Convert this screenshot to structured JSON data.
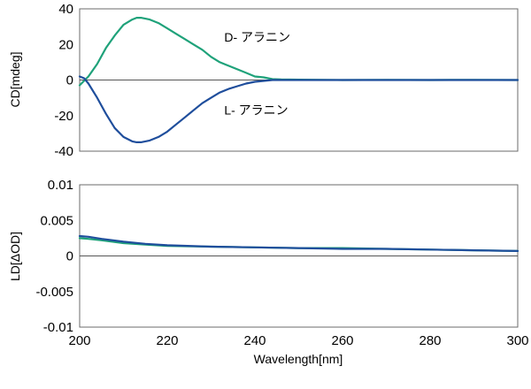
{
  "chart_data": [
    {
      "type": "line",
      "ylabel": "CD[mdeg]",
      "xlim": [
        200,
        300
      ],
      "ylim": [
        -40,
        40
      ],
      "yticks": [
        "40",
        "20",
        "0",
        "-20",
        "-40"
      ],
      "zero_line": true,
      "grid": false,
      "series": [
        {
          "name": "D- アラニン",
          "color": "#1fa27a",
          "x": [
            200,
            202,
            204,
            206,
            208,
            210,
            212,
            213,
            214,
            216,
            218,
            220,
            222,
            224,
            226,
            228,
            230,
            232,
            234,
            236,
            238,
            240,
            242,
            244,
            246,
            250,
            260,
            270,
            280,
            290,
            300
          ],
          "y": [
            -3,
            2,
            9,
            18,
            25,
            31,
            34,
            35,
            35,
            34,
            32,
            29,
            26,
            23,
            20,
            17,
            13,
            10,
            8,
            6,
            4,
            2,
            1.5,
            0.5,
            0.3,
            0.2,
            0,
            0.1,
            0,
            0.1,
            0
          ]
        },
        {
          "name": "L- アラニン",
          "color": "#1f4e9c",
          "x": [
            200,
            201,
            202,
            204,
            206,
            208,
            210,
            212,
            213,
            214,
            216,
            218,
            220,
            222,
            224,
            226,
            228,
            230,
            232,
            234,
            236,
            238,
            240,
            242,
            244,
            246,
            250,
            260,
            270,
            280,
            290,
            300
          ],
          "y": [
            2,
            1,
            -2,
            -10,
            -19,
            -27,
            -32,
            -34.5,
            -35,
            -35,
            -34,
            -32,
            -29,
            -25,
            -21,
            -17,
            -13,
            -10,
            -7,
            -5,
            -3.5,
            -2,
            -1,
            -0.5,
            0,
            0,
            0,
            0,
            0,
            0,
            0,
            0
          ]
        }
      ],
      "annotations": [
        {
          "text": "D- アラニン",
          "x": 233,
          "y": 24
        },
        {
          "text": "L- アラニン",
          "x": 233,
          "y": -17
        }
      ]
    },
    {
      "type": "line",
      "xlabel": "Wavelength[nm]",
      "ylabel": "LD[ΔOD]",
      "xlim": [
        200,
        300
      ],
      "ylim": [
        -0.01,
        0.01
      ],
      "xticks": [
        "200",
        "220",
        "240",
        "260",
        "280",
        "300"
      ],
      "yticks": [
        "0.01",
        "0.005",
        "0",
        "-0.005",
        "-0.01"
      ],
      "zero_line": true,
      "grid": false,
      "series": [
        {
          "color": "#1fa27a",
          "x": [
            200,
            202,
            205,
            210,
            215,
            220,
            230,
            240,
            250,
            260,
            270,
            280,
            290,
            300
          ],
          "y": [
            0.0025,
            0.0024,
            0.0022,
            0.0018,
            0.0016,
            0.0014,
            0.0013,
            0.0012,
            0.0011,
            0.0011,
            0.001,
            0.0009,
            0.0008,
            0.0007
          ]
        },
        {
          "color": "#1f4e9c",
          "x": [
            200,
            202,
            205,
            210,
            215,
            220,
            230,
            240,
            250,
            260,
            270,
            280,
            290,
            300
          ],
          "y": [
            0.0028,
            0.0027,
            0.0024,
            0.002,
            0.0017,
            0.0015,
            0.0013,
            0.0012,
            0.0011,
            0.001,
            0.001,
            0.0009,
            0.0008,
            0.0007
          ]
        }
      ]
    }
  ]
}
